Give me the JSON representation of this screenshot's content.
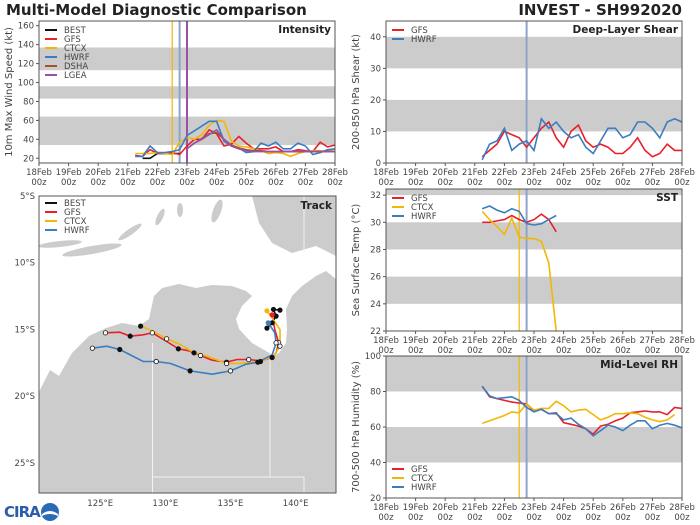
{
  "header": {
    "title": "Multi-Model Diagnostic Comparison",
    "storm": "INVEST - SH992020"
  },
  "logo": {
    "text": "CIRA"
  },
  "chart_data": [
    {
      "type": "line",
      "id": "intensity",
      "title": "Intensity",
      "ylabel": "10m Max Wind Speed (kt)",
      "xlim": [
        "18Feb00z",
        "28Feb00z"
      ],
      "ylim": [
        15,
        165
      ],
      "yticks": [
        20,
        40,
        60,
        80,
        100,
        120,
        140,
        160
      ],
      "xtick_labels": [
        [
          "18Feb",
          "00z"
        ],
        [
          "19Feb",
          "00z"
        ],
        [
          "20Feb",
          "00z"
        ],
        [
          "21Feb",
          "00z"
        ],
        [
          "22Feb",
          "00z"
        ],
        [
          "23Feb",
          "00z"
        ],
        [
          "24Feb",
          "00z"
        ],
        [
          "25Feb",
          "00z"
        ],
        [
          "26Feb",
          "00z"
        ],
        [
          "27Feb",
          "00z"
        ],
        [
          "28Feb",
          "00z"
        ]
      ],
      "shaded_bands": [
        [
          34,
          64
        ],
        [
          83,
          96
        ],
        [
          113,
          137
        ]
      ],
      "init_lines": [
        {
          "time": "22Feb12z",
          "color": "#f2b705"
        },
        {
          "time": "22Feb18z",
          "color": "#8fa3c8"
        },
        {
          "time": "23Feb00z",
          "color": "#9b4fa5"
        }
      ],
      "legend": "top-left",
      "series": [
        {
          "name": "BEST",
          "color": "#111111",
          "start": "21Feb12z",
          "step_hours": 6,
          "values": [
            20,
            20,
            25,
            25,
            25,
            25
          ]
        },
        {
          "name": "GFS",
          "color": "#e8202a",
          "start": "21Feb06z",
          "step_hours": 6,
          "values": [
            23,
            22,
            29,
            25,
            25,
            26,
            24,
            33,
            40,
            40,
            50,
            46,
            33,
            35,
            43,
            36,
            30,
            30,
            30,
            32,
            27,
            27,
            29,
            28,
            27,
            37,
            32,
            34
          ]
        },
        {
          "name": "CTCX",
          "color": "#f2b705",
          "start": "21Feb06z",
          "step_hours": 6,
          "values": [
            25,
            25,
            25,
            26,
            25,
            24,
            37,
            42,
            40,
            45,
            55,
            60,
            59,
            38,
            33,
            32,
            30,
            28,
            25,
            26,
            25,
            22,
            25,
            27,
            28,
            28,
            27,
            30
          ]
        },
        {
          "name": "HWRF",
          "color": "#3a7dc0",
          "start": "21Feb06z",
          "step_hours": 6,
          "values": [
            22,
            22,
            33,
            26,
            26,
            27,
            29,
            44,
            49,
            54,
            59,
            59,
            38,
            33,
            31,
            26,
            27,
            36,
            33,
            37,
            30,
            30,
            36,
            33,
            24,
            26,
            29,
            30
          ]
        },
        {
          "name": "DSHA",
          "color": "#a0522d",
          "start": "23Feb00z",
          "step_hours": 6,
          "values": [
            30,
            36,
            41,
            46,
            47,
            40,
            34,
            31,
            29,
            28,
            28,
            27,
            27,
            27,
            27,
            27,
            27,
            27,
            27,
            27,
            27
          ]
        },
        {
          "name": "LGEA",
          "color": "#9b4fa5",
          "start": "23Feb00z",
          "step_hours": 6,
          "values": [
            30,
            36,
            40,
            45,
            50,
            40,
            33,
            30,
            28,
            27,
            27,
            27,
            27,
            27,
            27,
            27,
            27,
            27,
            27,
            27,
            27
          ]
        }
      ]
    },
    {
      "type": "line",
      "id": "shear",
      "title": "Deep-Layer Shear",
      "ylabel": "200-850 hPa Shear (kt)",
      "xlim": [
        "18Feb00z",
        "28Feb00z"
      ],
      "ylim": [
        0,
        45
      ],
      "yticks": [
        0,
        10,
        20,
        30,
        40
      ],
      "xtick_labels": [
        [
          "18Feb",
          "00z"
        ],
        [
          "19Feb",
          "00z"
        ],
        [
          "20Feb",
          "00z"
        ],
        [
          "21Feb",
          "00z"
        ],
        [
          "22Feb",
          "00z"
        ],
        [
          "23Feb",
          "00z"
        ],
        [
          "24Feb",
          "00z"
        ],
        [
          "25Feb",
          "00z"
        ],
        [
          "26Feb",
          "00z"
        ],
        [
          "27Feb",
          "00z"
        ],
        [
          "28Feb",
          "00z"
        ]
      ],
      "shaded_bands": [
        [
          10,
          20
        ],
        [
          30,
          40
        ]
      ],
      "init_lines": [
        {
          "time": "22Feb18z",
          "color": "#8fa3c8"
        }
      ],
      "legend": "top-left",
      "series": [
        {
          "name": "GFS",
          "color": "#e8202a",
          "start": "21Feb06z",
          "step_hours": 6,
          "values": [
            2,
            4,
            6,
            10,
            9,
            8,
            5,
            8,
            11,
            13,
            8,
            5,
            10,
            12,
            7,
            5,
            6,
            5,
            3,
            3,
            5,
            8,
            4,
            2,
            3,
            6,
            4,
            4
          ]
        },
        {
          "name": "HWRF",
          "color": "#3a7dc0",
          "start": "21Feb06z",
          "step_hours": 6,
          "values": [
            1,
            6,
            7,
            11,
            4,
            6,
            7,
            4,
            14,
            11,
            13,
            10,
            8,
            9,
            5,
            3,
            7,
            11,
            11,
            8,
            9,
            13,
            13,
            11,
            8,
            13,
            14,
            13
          ]
        }
      ]
    },
    {
      "type": "line",
      "id": "sst",
      "title": "SST",
      "ylabel": "Sea Surface Temp (°C)",
      "xlim": [
        "18Feb00z",
        "28Feb00z"
      ],
      "ylim": [
        22,
        32.45
      ],
      "yticks": [
        22,
        24,
        26,
        28,
        30,
        32
      ],
      "xtick_labels": [
        [
          "18Feb",
          "00z"
        ],
        [
          "19Feb",
          "00z"
        ],
        [
          "20Feb",
          "00z"
        ],
        [
          "21Feb",
          "00z"
        ],
        [
          "22Feb",
          "00z"
        ],
        [
          "23Feb",
          "00z"
        ],
        [
          "24Feb",
          "00z"
        ],
        [
          "25Feb",
          "00z"
        ],
        [
          "26Feb",
          "00z"
        ],
        [
          "27Feb",
          "00z"
        ],
        [
          "28Feb",
          "00z"
        ]
      ],
      "shaded_bands": [
        [
          24,
          26
        ],
        [
          28,
          30
        ],
        [
          32,
          34
        ]
      ],
      "init_lines": [
        {
          "time": "22Feb12z",
          "color": "#f2b705"
        },
        {
          "time": "22Feb18z",
          "color": "#8fa3c8"
        }
      ],
      "legend": "top-left",
      "series": [
        {
          "name": "GFS",
          "color": "#e8202a",
          "start": "21Feb06z",
          "step_hours": 6,
          "values": [
            30.0,
            30.0,
            30.1,
            30.2,
            30.5,
            30.2,
            30.0,
            30.2,
            30.6,
            30.2,
            29.3
          ]
        },
        {
          "name": "CTCX",
          "color": "#f2b705",
          "start": "21Feb06z",
          "step_hours": 6,
          "values": [
            30.8,
            30.2,
            29.7,
            29.1,
            30.3,
            28.9,
            28.8,
            28.8,
            28.6,
            27.0,
            22.0
          ]
        },
        {
          "name": "HWRF",
          "color": "#3a7dc0",
          "start": "21Feb06z",
          "step_hours": 6,
          "values": [
            31.0,
            31.2,
            30.9,
            30.7,
            31.0,
            30.8,
            29.9,
            29.8,
            29.9,
            30.2,
            30.5
          ]
        }
      ]
    },
    {
      "type": "line",
      "id": "rh",
      "title": "Mid-Level RH",
      "ylabel": "700-500 hPa Humidity (%)",
      "xlim": [
        "18Feb00z",
        "28Feb00z"
      ],
      "ylim": [
        20,
        100
      ],
      "yticks": [
        20,
        40,
        60,
        80,
        100
      ],
      "xtick_labels": [
        [
          "18Feb",
          "00z"
        ],
        [
          "19Feb",
          "00z"
        ],
        [
          "20Feb",
          "00z"
        ],
        [
          "21Feb",
          "00z"
        ],
        [
          "22Feb",
          "00z"
        ],
        [
          "23Feb",
          "00z"
        ],
        [
          "24Feb",
          "00z"
        ],
        [
          "25Feb",
          "00z"
        ],
        [
          "26Feb",
          "00z"
        ],
        [
          "27Feb",
          "00z"
        ],
        [
          "28Feb",
          "00z"
        ]
      ],
      "shaded_bands": [
        [
          40,
          60
        ],
        [
          80,
          100
        ]
      ],
      "init_lines": [
        {
          "time": "22Feb12z",
          "color": "#f2b705"
        },
        {
          "time": "22Feb18z",
          "color": "#8fa3c8"
        }
      ],
      "legend": "bottom-left",
      "series": [
        {
          "name": "GFS",
          "color": "#e8202a",
          "start": "21Feb06z",
          "step_hours": 6,
          "values": [
            83,
            77,
            76,
            75,
            74,
            73.5,
            73,
            69,
            70,
            67.5,
            68,
            62.5,
            61.5,
            60.5,
            59,
            56,
            60.5,
            61.5,
            63.5,
            65,
            68,
            68.5,
            69,
            68.5,
            68.5,
            67,
            71,
            70.5
          ]
        },
        {
          "name": "CTCX",
          "color": "#f2b705",
          "start": "21Feb06z",
          "step_hours": 6,
          "values": [
            62,
            63.5,
            65,
            66.5,
            68.5,
            68,
            73,
            69.5,
            70.5,
            70.5,
            74.5,
            72,
            68.5,
            69.5,
            70,
            67,
            64,
            65.5,
            67.5,
            67.5,
            68,
            67.5,
            65.5,
            64,
            63,
            64,
            67
          ]
        },
        {
          "name": "HWRF",
          "color": "#3a7dc0",
          "start": "21Feb06z",
          "step_hours": 6,
          "values": [
            83,
            77.5,
            76,
            76.5,
            77,
            75,
            71,
            68.5,
            70,
            67.5,
            67.5,
            64,
            65,
            61.5,
            59,
            55,
            58,
            61,
            60,
            58,
            61,
            63.5,
            63.5,
            59,
            61,
            62,
            61,
            59.5
          ]
        }
      ]
    },
    {
      "type": "map",
      "id": "track",
      "title": "Track",
      "lon_range": [
        120.3,
        143.1
      ],
      "lat_range": [
        -27.25,
        -5
      ],
      "lat_ticks": [
        {
          "value": -5,
          "label": "5°S"
        },
        {
          "value": -10,
          "label": "10°S"
        },
        {
          "value": -15,
          "label": "15°S"
        },
        {
          "value": -20,
          "label": "20°S"
        },
        {
          "value": -25,
          "label": "25°S"
        }
      ],
      "lon_ticks": [
        {
          "value": 125,
          "label": "125°E"
        },
        {
          "value": 130,
          "label": "130°E"
        },
        {
          "value": 135,
          "label": "135°E"
        },
        {
          "value": 140,
          "label": "140°E"
        }
      ],
      "land_color": "#cccccc",
      "sea_color": "#ffffff",
      "legend": "top-left",
      "series": [
        {
          "name": "BEST",
          "color": "#111111",
          "points": [
            [
              138.8,
              -13.55
            ],
            [
              138.3,
              -13.5
            ],
            [
              138.5,
              -14.0
            ],
            [
              138.2,
              -14.5
            ],
            [
              137.8,
              -14.9
            ]
          ]
        },
        {
          "name": "GFS",
          "color": "#e8202a",
          "points": [
            [
              138.2,
              -13.9
            ],
            [
              138.4,
              -15.0
            ],
            [
              138.7,
              -16.0
            ],
            [
              138.5,
              -16.75
            ],
            [
              138.2,
              -17.1
            ],
            [
              137.3,
              -17.35
            ],
            [
              136.4,
              -17.25
            ],
            [
              135.5,
              -17.25
            ],
            [
              134.7,
              -17.45
            ],
            [
              133.6,
              -17.3
            ],
            [
              132.7,
              -16.95
            ],
            [
              131.8,
              -16.6
            ],
            [
              131.0,
              -16.45
            ],
            [
              130.1,
              -15.9
            ],
            [
              129.0,
              -15.25
            ],
            [
              128.3,
              -15.4
            ],
            [
              127.3,
              -15.5
            ],
            [
              126.5,
              -15.2
            ],
            [
              125.4,
              -15.25
            ]
          ]
        },
        {
          "name": "CTCX",
          "color": "#f2b705",
          "points": [
            [
              137.8,
              -13.6
            ],
            [
              138.8,
              -15.0
            ],
            [
              138.8,
              -16.25
            ],
            [
              138.3,
              -17.0
            ],
            [
              137.3,
              -17.4
            ],
            [
              135.7,
              -17.55
            ],
            [
              134.7,
              -17.55
            ],
            [
              133.2,
              -17.0
            ],
            [
              132.2,
              -16.75
            ],
            [
              131.1,
              -16.1
            ],
            [
              130.1,
              -15.7
            ],
            [
              129.0,
              -15.1
            ],
            [
              128.1,
              -14.75
            ]
          ]
        },
        {
          "name": "HWRF",
          "color": "#3a7dc0",
          "points": [
            [
              137.9,
              -14.5
            ],
            [
              138.4,
              -15.25
            ],
            [
              138.5,
              -16.0
            ],
            [
              138.2,
              -16.9
            ],
            [
              137.1,
              -17.45
            ],
            [
              136.2,
              -17.6
            ],
            [
              135.0,
              -18.1
            ],
            [
              133.6,
              -18.35
            ],
            [
              131.9,
              -18.1
            ],
            [
              130.4,
              -17.55
            ],
            [
              129.3,
              -17.4
            ],
            [
              128.3,
              -17.4
            ],
            [
              126.5,
              -16.5
            ],
            [
              125.5,
              -16.25
            ],
            [
              124.4,
              -16.4
            ]
          ]
        }
      ]
    }
  ]
}
